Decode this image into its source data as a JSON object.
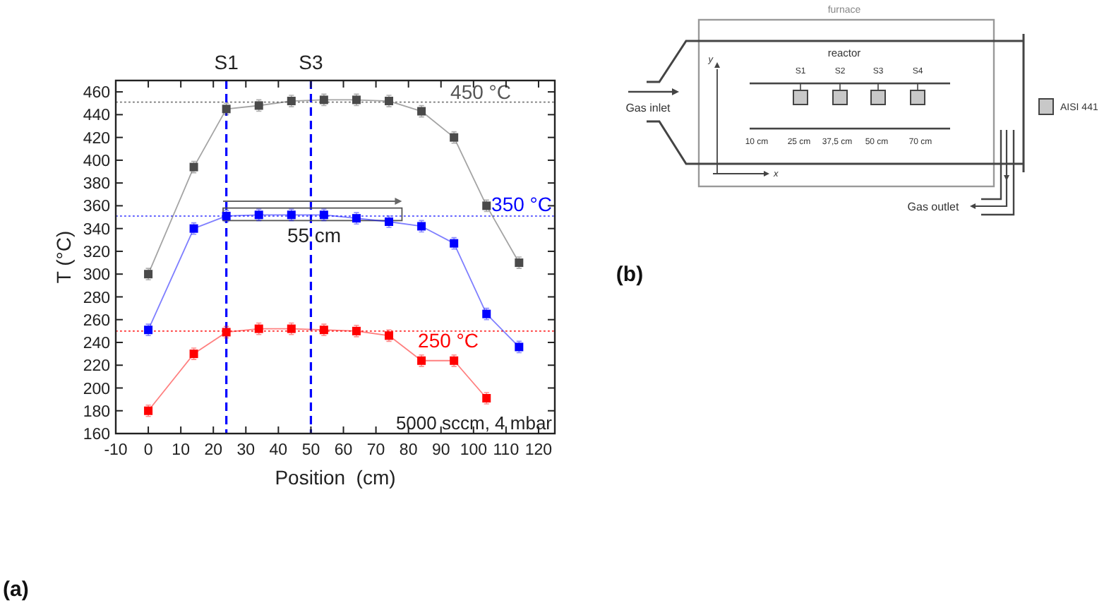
{
  "chart_data": [
    {
      "type": "line",
      "xlabel": "Position  (cm)",
      "ylabel": "T (°C)",
      "x": [
        0,
        14,
        24,
        34,
        44,
        54,
        64,
        74,
        84,
        94,
        104,
        114
      ],
      "series": [
        {
          "color": "#4a4a4a",
          "values": [
            300,
            394,
            445,
            448,
            452,
            453,
            453,
            452,
            443,
            420,
            360,
            310
          ],
          "errors": [
            5,
            5,
            5,
            5,
            5,
            5,
            5,
            5,
            5,
            5,
            5,
            5
          ]
        },
        {
          "color": "#0000ff",
          "values": [
            251,
            340,
            351,
            352,
            352,
            352,
            349,
            346,
            342,
            327,
            265,
            236
          ],
          "errors": [
            5,
            5,
            5,
            5,
            5,
            5,
            5,
            5,
            5,
            5,
            5,
            5
          ]
        },
        {
          "color": "#ff0000",
          "values": [
            180,
            230,
            249,
            252,
            252,
            251,
            250,
            246,
            224,
            224,
            191,
            null
          ],
          "errors": [
            5,
            5,
            5,
            5,
            5,
            5,
            5,
            5,
            5,
            5,
            5,
            null
          ]
        }
      ],
      "xlim": [
        -10,
        125
      ],
      "ylim": [
        160,
        470
      ],
      "xticks": [
        -10,
        0,
        10,
        20,
        30,
        40,
        50,
        60,
        70,
        80,
        90,
        100,
        110,
        120
      ],
      "yticks": [
        160,
        180,
        200,
        220,
        240,
        260,
        280,
        300,
        320,
        340,
        360,
        380,
        400,
        420,
        440,
        460
      ],
      "marker": "square",
      "line_style": "solid",
      "ref_lines": [
        {
          "axis": "y",
          "value": 451,
          "label": "450 °C",
          "color": "#555555",
          "line_style": "dotted"
        },
        {
          "axis": "y",
          "value": 351,
          "label": "350 °C",
          "color": "#0000ff",
          "line_style": "dotted"
        },
        {
          "axis": "y",
          "value": 250,
          "label": "250 °C",
          "color": "#ff0000",
          "line_style": "dotted"
        },
        {
          "axis": "x",
          "value": 24,
          "label": "S1",
          "color": "#0000ff",
          "line_style": "dashed"
        },
        {
          "axis": "x",
          "value": 50,
          "label": "S3",
          "color": "#0000ff",
          "line_style": "dashed"
        }
      ],
      "annotations": [
        {
          "text": "55 cm",
          "x": 51,
          "y": 334
        },
        "5000 sccm, 4 mbar",
        "(a)"
      ]
    },
    {
      "type": "other",
      "annotations": [
        "furnace",
        "reactor",
        "S1",
        "S2",
        "S3",
        "S4",
        "10 cm",
        "25 cm",
        "37,5 cm",
        "50 cm",
        "70 cm",
        "y",
        "x",
        "Gas inlet",
        "Gas outlet",
        "AISI 441",
        "(b)"
      ]
    }
  ]
}
